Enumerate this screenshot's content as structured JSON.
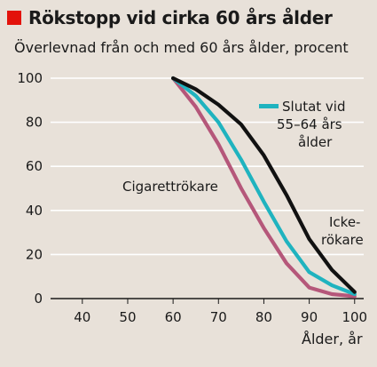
{
  "header": {
    "title": "Rökstopp vid cirka 60 års ålder",
    "subtitle": "Överlevnad från och med 60 års ålder, procent",
    "accent_color": "#e3120b"
  },
  "chart_data": {
    "type": "line",
    "xlabel": "Ålder, år",
    "ylabel": "",
    "xlim": [
      33,
      102
    ],
    "ylim": [
      0,
      100
    ],
    "xticks": [
      40,
      50,
      60,
      70,
      80,
      90,
      100
    ],
    "yticks": [
      0,
      20,
      40,
      60,
      80,
      100
    ],
    "grid": "horizontal",
    "series": [
      {
        "name": "Icke-rökare",
        "color": "#111111",
        "x": [
          60,
          65,
          70,
          75,
          80,
          85,
          90,
          95,
          100
        ],
        "y": [
          100,
          95,
          88,
          79,
          65,
          47,
          27,
          13,
          3
        ]
      },
      {
        "name": "Slutat vid 55–64 års ålder",
        "color": "#1fb3bf",
        "x": [
          60,
          65,
          70,
          75,
          80,
          85,
          90,
          95,
          100
        ],
        "y": [
          100,
          92,
          80,
          63,
          44,
          26,
          12,
          6,
          2
        ]
      },
      {
        "name": "Cigarettrökare",
        "color": "#b5577a",
        "x": [
          60,
          65,
          70,
          75,
          80,
          85,
          90,
          95,
          100
        ],
        "y": [
          100,
          87,
          70,
          50,
          32,
          16,
          5,
          2,
          1
        ]
      }
    ],
    "labels": {
      "smokers": "Cigarettrökare",
      "quit_line1": "Slutat vid",
      "quit_line2": "55–64 års",
      "quit_line3": "ålder",
      "nonsmoker_line1": "Icke-",
      "nonsmoker_line2": "rökare"
    }
  }
}
